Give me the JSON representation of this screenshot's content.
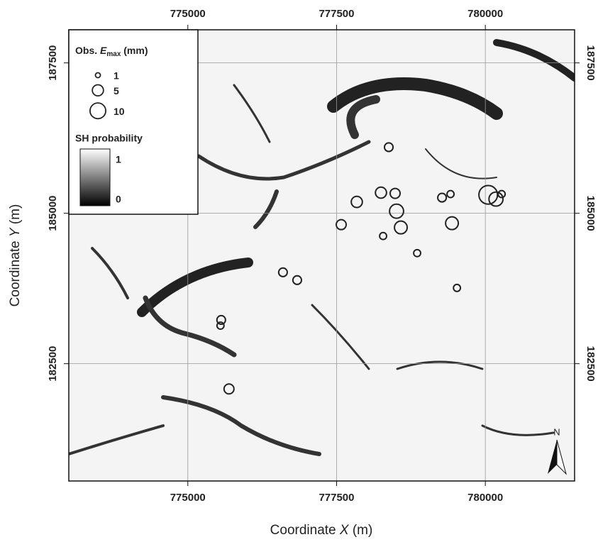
{
  "chart_data": {
    "type": "bubble",
    "x_label_parts": [
      "Coordinate",
      "X",
      "(m)"
    ],
    "y_label_parts": [
      "Coordinate",
      "Y",
      "(m)"
    ],
    "xlim": [
      773000,
      781500
    ],
    "xticks": [
      775000,
      777500,
      780000
    ],
    "ylim": [
      180550,
      188050
    ],
    "yticks": [
      182500,
      185000,
      187500
    ],
    "grid": true,
    "marker_color": "#222222",
    "x": [
      778377,
      778246,
      778484,
      777840,
      778508,
      777578,
      778282,
      778580,
      779272,
      779415,
      780048,
      780179,
      780274,
      779439,
      778854,
      779523,
      776599,
      776838,
      775561,
      775549,
      775692
    ],
    "y": [
      186099,
      185343,
      185331,
      185189,
      185035,
      184811,
      184622,
      184764,
      185260,
      185319,
      185307,
      185236,
      185319,
      184835,
      184338,
      183759,
      184019,
      183889,
      183227,
      183132,
      182080
    ],
    "sizes": [
      3,
      5,
      4,
      5,
      8,
      4,
      2,
      6.6,
      3,
      2,
      14,
      8,
      2,
      6.6,
      2,
      2,
      3,
      3,
      3,
      2,
      4
    ],
    "size_legend_title_parts": [
      "Obs.",
      "E",
      "max",
      "(mm)"
    ],
    "legend_sizes": [
      1,
      5,
      10
    ],
    "colorbar_title": "SH probability",
    "colorbar_ticks": [
      1,
      0
    ],
    "north_label": "N"
  }
}
